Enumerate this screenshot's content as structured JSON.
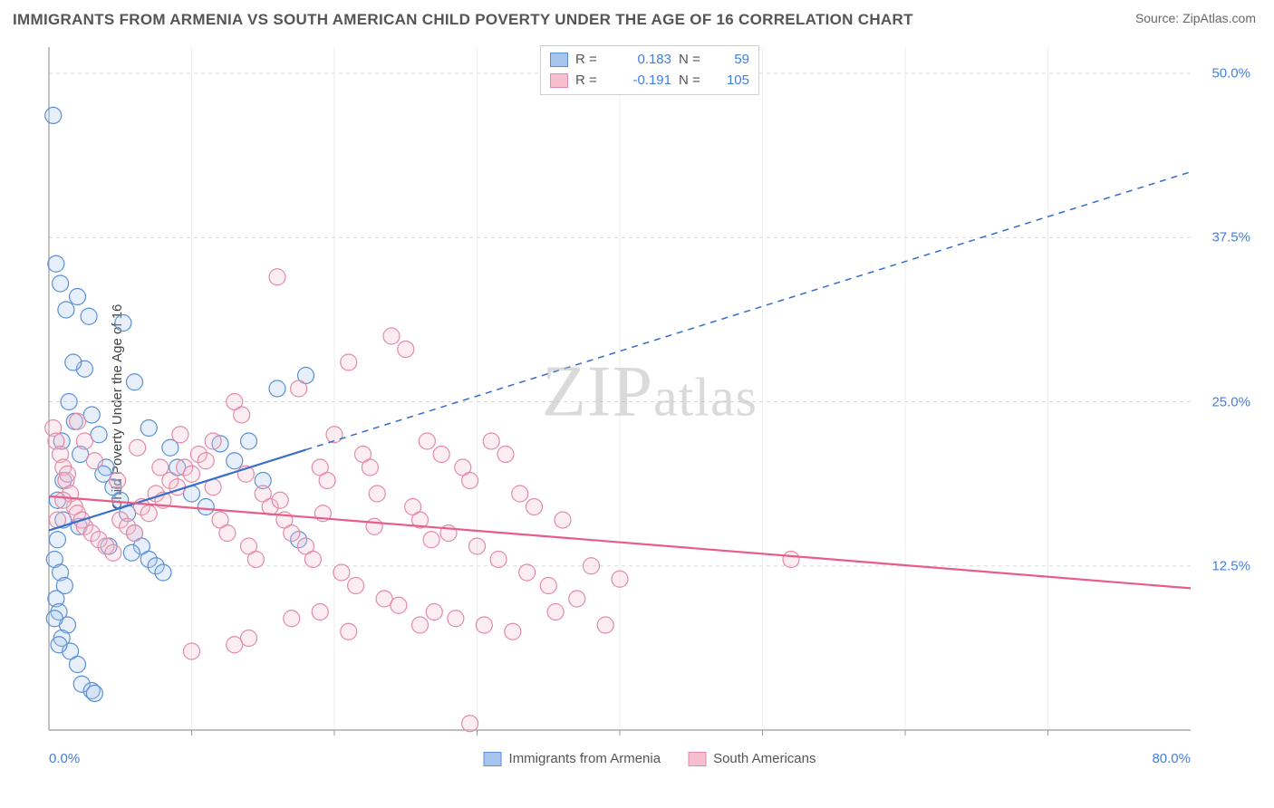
{
  "title": "IMMIGRANTS FROM ARMENIA VS SOUTH AMERICAN CHILD POVERTY UNDER THE AGE OF 16 CORRELATION CHART",
  "source_label": "Source:",
  "source_name": "ZipAtlas.com",
  "ylabel": "Child Poverty Under the Age of 16",
  "watermark": "ZIPatlas",
  "chart": {
    "type": "scatter",
    "xlim": [
      0,
      80
    ],
    "ylim": [
      0,
      52
    ],
    "x_ticks": [
      0,
      80
    ],
    "x_tick_labels": [
      "0.0%",
      "80.0%"
    ],
    "x_tick_color": "#3f7fe0",
    "y_ticks": [
      12.5,
      25.0,
      37.5,
      50.0
    ],
    "y_tick_labels": [
      "12.5%",
      "25.0%",
      "37.5%",
      "50.0%"
    ],
    "y_tick_color": "#3f7fe0",
    "grid_color": "#d9d9d9",
    "grid_dash": "4,4",
    "axis_color": "#9a9a9a",
    "background_color": "#ffffff",
    "marker_radius": 9,
    "marker_stroke_width": 1.2,
    "marker_fill_opacity": 0.28,
    "series": [
      {
        "name": "Immigrants from Armenia",
        "color_stroke": "#5a8fd6",
        "color_fill": "#a7c5ec",
        "R": "0.183",
        "N": "59",
        "stat_color": "#3f7fe0",
        "trend": {
          "x1": 0,
          "y1": 15.2,
          "x2": 80,
          "y2": 42.5,
          "solid_until_x": 18,
          "color": "#3a6fc9",
          "width": 2.2
        },
        "points": [
          [
            0.3,
            46.8
          ],
          [
            0.5,
            35.5
          ],
          [
            0.8,
            34.0
          ],
          [
            1.2,
            32.0
          ],
          [
            1.0,
            16.0
          ],
          [
            0.6,
            14.5
          ],
          [
            0.4,
            13.0
          ],
          [
            0.8,
            12.0
          ],
          [
            1.1,
            11.0
          ],
          [
            0.5,
            10.0
          ],
          [
            0.7,
            9.0
          ],
          [
            1.3,
            8.0
          ],
          [
            0.9,
            7.0
          ],
          [
            1.5,
            6.0
          ],
          [
            2.0,
            5.0
          ],
          [
            2.3,
            3.5
          ],
          [
            3.0,
            3.0
          ],
          [
            3.2,
            2.8
          ],
          [
            2.5,
            27.5
          ],
          [
            3.0,
            24.0
          ],
          [
            3.5,
            22.5
          ],
          [
            4.0,
            20.0
          ],
          [
            4.5,
            18.5
          ],
          [
            5.0,
            17.5
          ],
          [
            5.5,
            16.5
          ],
          [
            6.0,
            15.0
          ],
          [
            6.5,
            14.0
          ],
          [
            7.0,
            13.0
          ],
          [
            7.5,
            12.5
          ],
          [
            8.0,
            12.0
          ],
          [
            2.0,
            33.0
          ],
          [
            2.8,
            31.5
          ],
          [
            5.2,
            31.0
          ],
          [
            6.0,
            26.5
          ],
          [
            7.0,
            23.0
          ],
          [
            8.5,
            21.5
          ],
          [
            9.0,
            20.0
          ],
          [
            10.0,
            18.0
          ],
          [
            11.0,
            17.0
          ],
          [
            12.0,
            21.8
          ],
          [
            13.0,
            20.5
          ],
          [
            14.0,
            22.0
          ],
          [
            15.0,
            19.0
          ],
          [
            16.0,
            26.0
          ],
          [
            17.5,
            14.5
          ],
          [
            18.0,
            27.0
          ],
          [
            1.8,
            23.5
          ],
          [
            2.2,
            21.0
          ],
          [
            3.8,
            19.5
          ],
          [
            1.0,
            19.0
          ],
          [
            0.6,
            17.5
          ],
          [
            0.9,
            22.0
          ],
          [
            1.4,
            25.0
          ],
          [
            1.7,
            28.0
          ],
          [
            2.1,
            15.5
          ],
          [
            4.2,
            14.0
          ],
          [
            5.8,
            13.5
          ],
          [
            0.4,
            8.5
          ],
          [
            0.7,
            6.5
          ]
        ]
      },
      {
        "name": "South Americans",
        "color_stroke": "#e48aa4",
        "color_fill": "#f5bfcf",
        "R": "-0.191",
        "N": "105",
        "stat_color": "#3f7fe0",
        "trend": {
          "x1": 0,
          "y1": 17.8,
          "x2": 80,
          "y2": 10.8,
          "solid_until_x": 80,
          "color": "#e85d87",
          "width": 2.2
        },
        "points": [
          [
            0.3,
            23.0
          ],
          [
            0.5,
            22.0
          ],
          [
            0.8,
            21.0
          ],
          [
            1.0,
            20.0
          ],
          [
            1.2,
            19.0
          ],
          [
            1.5,
            18.0
          ],
          [
            1.8,
            17.0
          ],
          [
            2.0,
            16.5
          ],
          [
            2.3,
            16.0
          ],
          [
            2.5,
            15.5
          ],
          [
            3.0,
            15.0
          ],
          [
            3.5,
            14.5
          ],
          [
            4.0,
            14.0
          ],
          [
            4.5,
            13.5
          ],
          [
            5.0,
            16.0
          ],
          [
            5.5,
            15.5
          ],
          [
            6.0,
            15.0
          ],
          [
            6.5,
            17.0
          ],
          [
            7.0,
            16.5
          ],
          [
            7.5,
            18.0
          ],
          [
            8.0,
            17.5
          ],
          [
            8.5,
            19.0
          ],
          [
            9.0,
            18.5
          ],
          [
            9.5,
            20.0
          ],
          [
            10.0,
            19.5
          ],
          [
            10.5,
            21.0
          ],
          [
            11.0,
            20.5
          ],
          [
            11.5,
            22.0
          ],
          [
            12.0,
            16.0
          ],
          [
            12.5,
            15.0
          ],
          [
            13.0,
            25.0
          ],
          [
            13.5,
            24.0
          ],
          [
            14.0,
            14.0
          ],
          [
            14.5,
            13.0
          ],
          [
            15.0,
            18.0
          ],
          [
            15.5,
            17.0
          ],
          [
            16.0,
            34.5
          ],
          [
            16.5,
            16.0
          ],
          [
            17.0,
            15.0
          ],
          [
            17.5,
            26.0
          ],
          [
            18.0,
            14.0
          ],
          [
            18.5,
            13.0
          ],
          [
            19.0,
            20.0
          ],
          [
            19.5,
            19.0
          ],
          [
            20.0,
            22.5
          ],
          [
            20.5,
            12.0
          ],
          [
            21.0,
            28.0
          ],
          [
            21.5,
            11.0
          ],
          [
            22.0,
            21.0
          ],
          [
            22.5,
            20.0
          ],
          [
            23.0,
            18.0
          ],
          [
            23.5,
            10.0
          ],
          [
            24.0,
            30.0
          ],
          [
            24.5,
            9.5
          ],
          [
            25.0,
            29.0
          ],
          [
            25.5,
            17.0
          ],
          [
            26.0,
            16.0
          ],
          [
            26.5,
            22.0
          ],
          [
            27.0,
            9.0
          ],
          [
            27.5,
            21.0
          ],
          [
            28.0,
            15.0
          ],
          [
            28.5,
            8.5
          ],
          [
            29.0,
            20.0
          ],
          [
            29.5,
            19.0
          ],
          [
            30.0,
            14.0
          ],
          [
            30.5,
            8.0
          ],
          [
            31.0,
            22.0
          ],
          [
            31.5,
            13.0
          ],
          [
            32.0,
            21.0
          ],
          [
            32.5,
            7.5
          ],
          [
            33.0,
            18.0
          ],
          [
            33.5,
            12.0
          ],
          [
            34.0,
            17.0
          ],
          [
            35.0,
            11.0
          ],
          [
            35.5,
            9.0
          ],
          [
            36.0,
            16.0
          ],
          [
            37.0,
            10.0
          ],
          [
            38.0,
            12.5
          ],
          [
            39.0,
            8.0
          ],
          [
            40.0,
            11.5
          ],
          [
            52.0,
            13.0
          ],
          [
            13.0,
            6.5
          ],
          [
            14.0,
            7.0
          ],
          [
            21.0,
            7.5
          ],
          [
            26.0,
            8.0
          ],
          [
            29.5,
            0.5
          ],
          [
            10.0,
            6.0
          ],
          [
            1.0,
            17.5
          ],
          [
            1.3,
            19.5
          ],
          [
            0.6,
            16.0
          ],
          [
            2.0,
            23.5
          ],
          [
            2.5,
            22.0
          ],
          [
            3.2,
            20.5
          ],
          [
            4.8,
            19.0
          ],
          [
            6.2,
            21.5
          ],
          [
            7.8,
            20.0
          ],
          [
            9.2,
            22.5
          ],
          [
            11.5,
            18.5
          ],
          [
            13.8,
            19.5
          ],
          [
            16.2,
            17.5
          ],
          [
            19.2,
            16.5
          ],
          [
            22.8,
            15.5
          ],
          [
            26.8,
            14.5
          ],
          [
            17.0,
            8.5
          ],
          [
            19.0,
            9.0
          ]
        ]
      }
    ]
  },
  "legend_bottom": [
    {
      "label": "Immigrants from Armenia",
      "fill": "#a7c5ec",
      "stroke": "#5a8fd6"
    },
    {
      "label": "South Americans",
      "fill": "#f5bfcf",
      "stroke": "#e48aa4"
    }
  ]
}
